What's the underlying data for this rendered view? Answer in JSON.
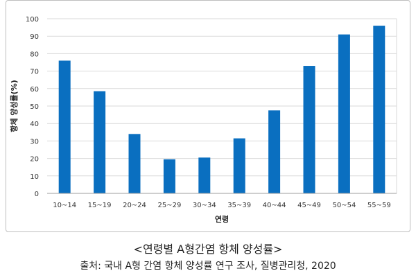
{
  "chart_data": {
    "type": "bar",
    "categories": [
      "10~14",
      "15~19",
      "20~24",
      "25~29",
      "30~34",
      "35~39",
      "40~44",
      "45~49",
      "50~54",
      "55~59"
    ],
    "values": [
      76,
      58.5,
      34,
      19.5,
      20.5,
      31.5,
      47.5,
      73,
      91,
      96
    ],
    "xlabel": "연령",
    "ylabel": "항체 양성률(%)",
    "ylim": [
      0,
      100
    ],
    "yticks": [
      0,
      10,
      20,
      30,
      40,
      50,
      60,
      70,
      80,
      90,
      100
    ],
    "grid": true,
    "bar_color": "#0a6fc0",
    "grid_color": "#d9d9d9"
  },
  "caption": "<연령별 A형간염 항체 양성률>",
  "source": "출처: 국내 A형 간염 항체 양성률 연구 조사, 질병관리청, 2020"
}
